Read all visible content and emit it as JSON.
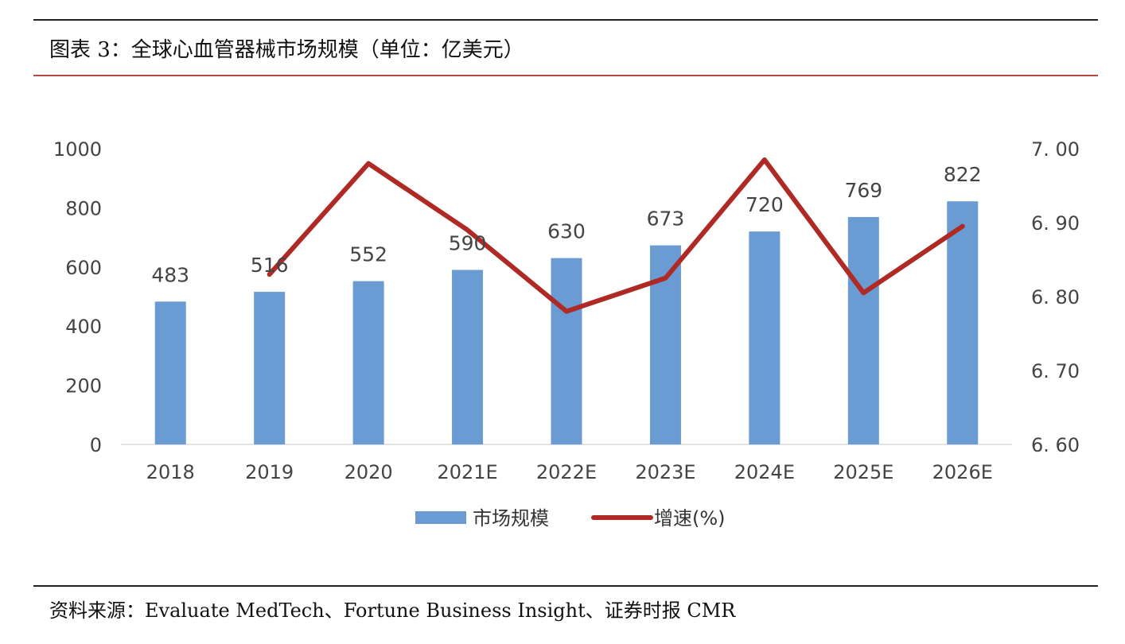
{
  "header": {
    "title": "图表 3：全球心血管器械市场规模（单位：亿美元）"
  },
  "footer": {
    "source": "资料来源：Evaluate MedTech、Fortune Business Insight、证券时报 CMR"
  },
  "chart_data": {
    "type": "bar",
    "title": "",
    "categories": [
      "2018",
      "2019",
      "2020",
      "2021E",
      "2022E",
      "2023E",
      "2024E",
      "2025E",
      "2026E"
    ],
    "series": [
      {
        "name": "市场规模",
        "type": "bar",
        "axis": "left",
        "color": "#6a9bd2",
        "values": [
          483,
          516,
          552,
          590,
          630,
          673,
          720,
          769,
          822
        ],
        "labels": [
          "483",
          "516",
          "552",
          "590",
          "630",
          "673",
          "720",
          "769",
          "822"
        ]
      },
      {
        "name": "增速(%)",
        "type": "line",
        "axis": "right",
        "color": "#b02a25",
        "values": [
          null,
          6.83,
          6.98,
          6.89,
          6.78,
          6.825,
          6.985,
          6.805,
          6.895
        ]
      }
    ],
    "y_left": {
      "min": 0,
      "max": 1000,
      "ticks": [
        "0",
        "200",
        "400",
        "600",
        "800",
        "1000"
      ]
    },
    "y_right": {
      "min": 6.6,
      "max": 7.0,
      "ticks": [
        "6. 60",
        "6. 70",
        "6. 80",
        "6. 90",
        "7. 00"
      ]
    },
    "grid": false,
    "legend_position": "bottom"
  }
}
